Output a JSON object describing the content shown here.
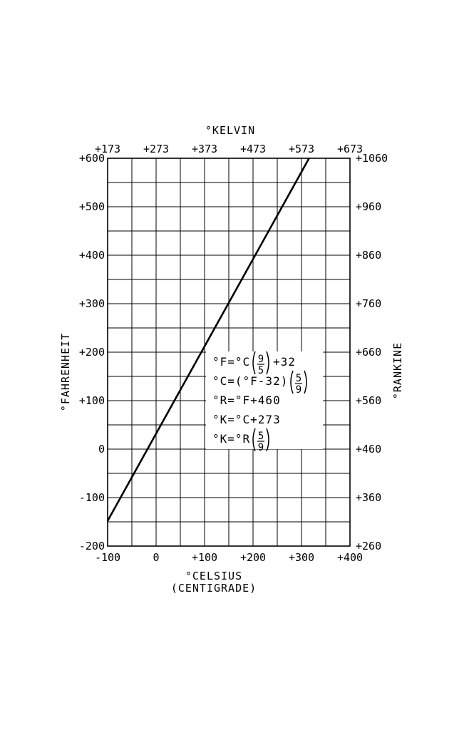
{
  "chart_data": {
    "type": "line",
    "x_axis": {
      "label_line1": "°CELSIUS",
      "label_line2": "(CENTIGRADE)",
      "range": [
        -100,
        400
      ],
      "ticks": [
        -100,
        0,
        100,
        200,
        300,
        400
      ],
      "tick_labels": [
        "-100",
        "0",
        "+100",
        "+200",
        "+300",
        "+400"
      ]
    },
    "x2_axis": {
      "label": "°KELVIN",
      "ticks_celsius": [
        -100,
        0,
        100,
        200,
        300,
        400
      ],
      "tick_labels": [
        "+173",
        "+273",
        "+373",
        "+473",
        "+573",
        "+673"
      ]
    },
    "y_axis": {
      "label": "°FAHRENHEIT",
      "range": [
        -200,
        600
      ],
      "ticks": [
        -200,
        -100,
        0,
        100,
        200,
        300,
        400,
        500,
        600
      ],
      "tick_labels": [
        "-200",
        "-100",
        "0",
        "+100",
        "+200",
        "+300",
        "+400",
        "+500",
        "+600"
      ]
    },
    "y2_axis": {
      "label": "°RANKINE",
      "ticks_fahrenheit": [
        -200,
        -100,
        0,
        100,
        200,
        300,
        400,
        500,
        600
      ],
      "tick_labels": [
        "+260",
        "+360",
        "+460",
        "+560",
        "+660",
        "+760",
        "+860",
        "+960",
        "+1060"
      ]
    },
    "grid": true,
    "grid_x_step": 50,
    "grid_y_step": 50,
    "series": [
      {
        "x": [
          -100,
          315.6
        ],
        "y": [
          -148,
          600
        ],
        "color": "#000000"
      }
    ],
    "formulas": [
      {
        "prefix": "°F=°C",
        "num": "9",
        "den": "5",
        "suffix": "+32"
      },
      {
        "prefix": "°C=(°F-32)",
        "num": "5",
        "den": "9",
        "suffix": ""
      },
      {
        "prefix": "°R=°F+460",
        "num": "",
        "den": "",
        "suffix": ""
      },
      {
        "prefix": "°K=°C+273",
        "num": "",
        "den": "",
        "suffix": ""
      },
      {
        "prefix": "°K=°R",
        "num": "5",
        "den": "9",
        "suffix": ""
      }
    ]
  }
}
